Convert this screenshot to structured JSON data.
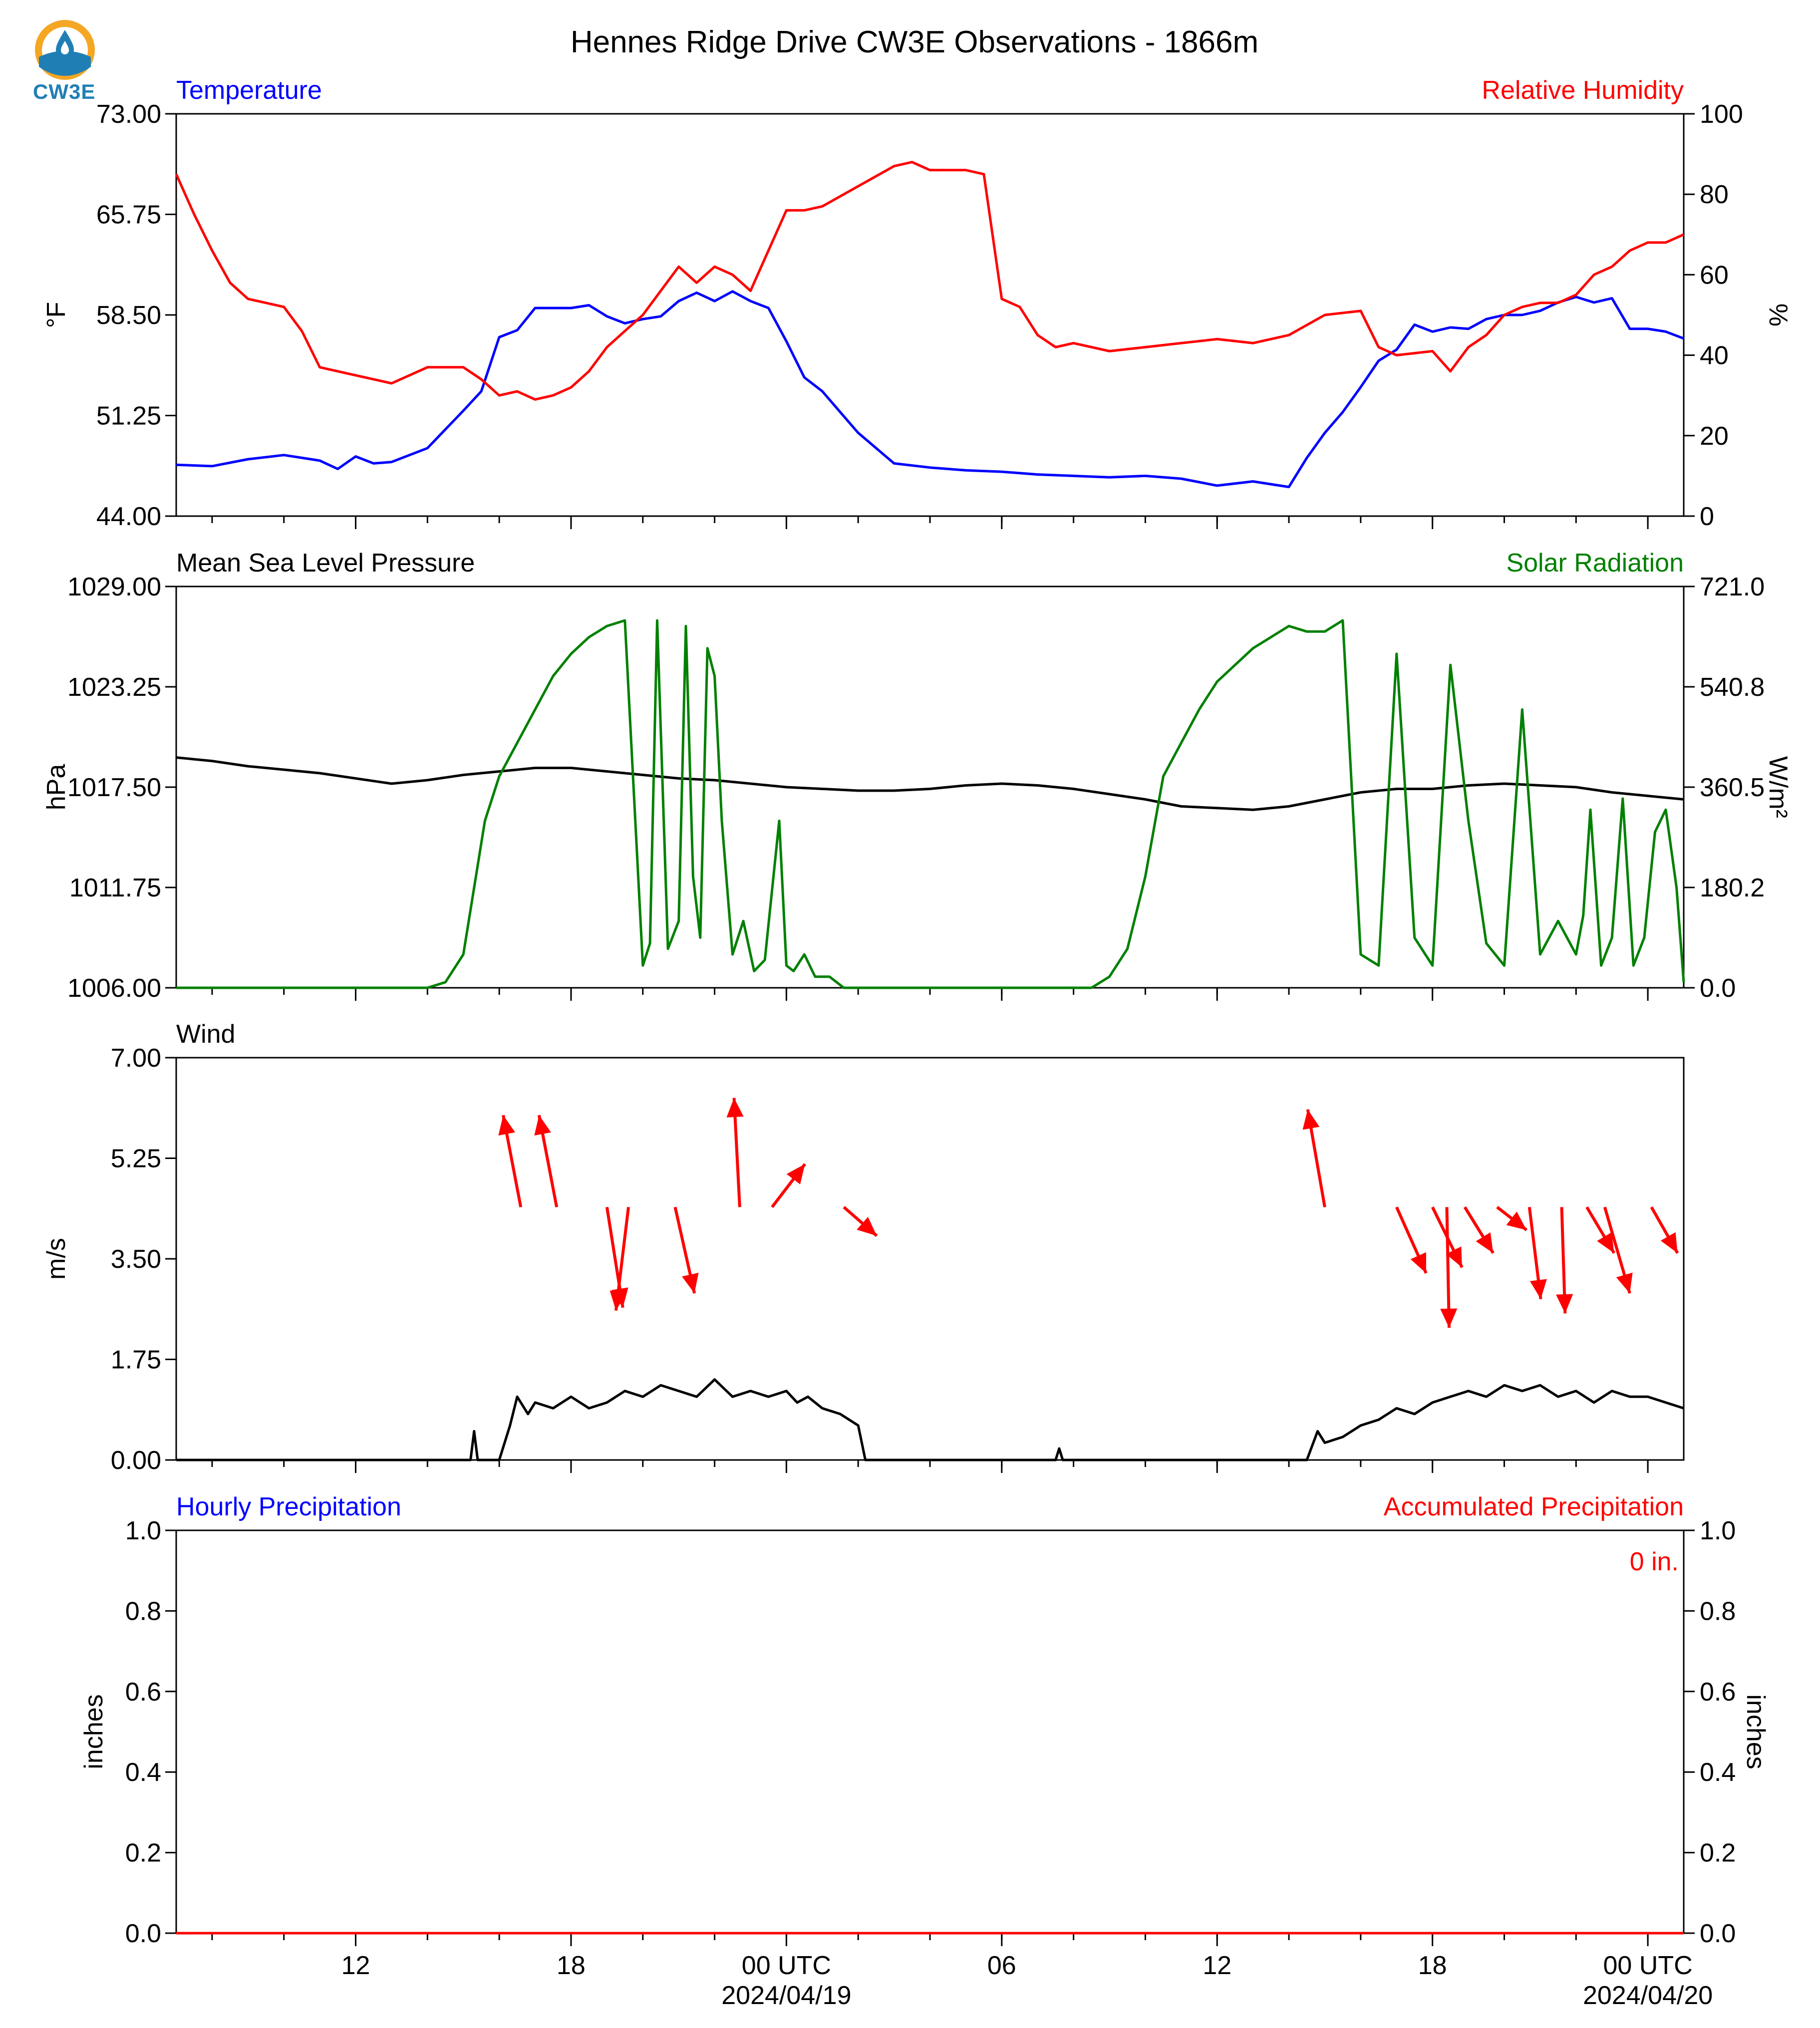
{
  "title": "Hennes Ridge Drive CW3E Observations - 1866m",
  "logo": {
    "text": "CW3E",
    "icon": "cw3e-water-drop-logo"
  },
  "colors": {
    "blue": "#0000ff",
    "red": "#ff0000",
    "green": "#008000",
    "black": "#000000"
  },
  "x_axis": {
    "range_hours": [
      0,
      42
    ],
    "major_ticks": [
      {
        "h": 5,
        "label": "12",
        "sub": ""
      },
      {
        "h": 11,
        "label": "18",
        "sub": ""
      },
      {
        "h": 17,
        "label": "00 UTC",
        "sub": "2024/04/19"
      },
      {
        "h": 23,
        "label": "06",
        "sub": ""
      },
      {
        "h": 29,
        "label": "12",
        "sub": ""
      },
      {
        "h": 35,
        "label": "18",
        "sub": ""
      },
      {
        "h": 41,
        "label": "00 UTC",
        "sub": "2024/04/20"
      }
    ],
    "minor_every_hours": 2,
    "minor_offset": 1
  },
  "chart_data": [
    {
      "type": "line",
      "left_label": "Temperature",
      "right_label": "Relative Humidity",
      "ylabel_left": "°F",
      "ylabel_right": "%",
      "ylim_left": [
        44.0,
        73.0
      ],
      "ylim_right": [
        0,
        100
      ],
      "yticks_left": [
        "73.00",
        "65.75",
        "58.50",
        "51.25",
        "44.00"
      ],
      "yticks_right": [
        "100",
        "80",
        "60",
        "40",
        "20",
        "0"
      ],
      "series": [
        {
          "name": "Temperature",
          "axis": "left",
          "color": "#0000ff",
          "x": [
            0,
            1,
            2,
            3,
            4,
            4.5,
            5,
            5.5,
            6,
            7,
            8,
            8.5,
            9,
            9.5,
            10,
            10.5,
            11,
            11.5,
            12,
            12.5,
            13,
            13.5,
            14,
            14.5,
            15,
            15.5,
            16,
            16.5,
            17,
            17.5,
            18,
            18.5,
            19,
            20,
            21,
            22,
            23,
            24,
            25,
            26,
            27,
            28,
            29,
            30,
            30.5,
            31,
            31.5,
            32,
            32.5,
            33,
            33.5,
            34,
            34.5,
            35,
            35.5,
            36,
            36.5,
            37,
            37.5,
            38,
            38.5,
            39,
            39.5,
            40,
            40.5,
            41,
            41.5,
            42
          ],
          "y": [
            47.7,
            47.6,
            48.1,
            48.4,
            48.0,
            47.4,
            48.3,
            47.8,
            47.9,
            48.9,
            51.6,
            53.0,
            56.9,
            57.4,
            59.0,
            59.0,
            59.0,
            59.2,
            58.4,
            57.9,
            58.2,
            58.4,
            59.5,
            60.1,
            59.5,
            60.2,
            59.5,
            59.0,
            56.6,
            54.0,
            53.0,
            51.5,
            50.0,
            47.8,
            47.5,
            47.3,
            47.2,
            47.0,
            46.9,
            46.8,
            46.9,
            46.7,
            46.2,
            46.5,
            46.3,
            46.1,
            48.2,
            50.0,
            51.5,
            53.3,
            55.2,
            56.0,
            57.8,
            57.3,
            57.6,
            57.5,
            58.2,
            58.5,
            58.5,
            58.8,
            59.4,
            59.8,
            59.4,
            59.7,
            57.5,
            57.5,
            57.3,
            56.8
          ]
        },
        {
          "name": "Relative Humidity",
          "axis": "right",
          "color": "#ff0000",
          "x": [
            0,
            0.5,
            1,
            1.5,
            2,
            2.5,
            3,
            3.5,
            4,
            5,
            6,
            7,
            8,
            8.5,
            9,
            9.5,
            10,
            10.5,
            11,
            11.5,
            12,
            12.5,
            13,
            13.5,
            14,
            14.5,
            15,
            15.5,
            16,
            16.5,
            17,
            17.5,
            18,
            19,
            20,
            20.5,
            21,
            22,
            22.5,
            23,
            23.5,
            24,
            24.5,
            25,
            26,
            27,
            28,
            29,
            30,
            31,
            32,
            33,
            33.5,
            34,
            35,
            35.5,
            36,
            36.5,
            37,
            37.5,
            38,
            38.5,
            39,
            39.5,
            40,
            40.5,
            41,
            41.5,
            42
          ],
          "y": [
            85,
            75,
            66,
            58,
            54,
            53,
            52,
            46,
            37,
            35,
            33,
            37,
            37,
            34,
            30,
            31,
            29,
            30,
            32,
            36,
            42,
            46,
            50,
            56,
            62,
            58,
            62,
            60,
            56,
            66,
            76,
            76,
            77,
            82,
            87,
            88,
            86,
            86,
            85,
            54,
            52,
            45,
            42,
            43,
            41,
            42,
            43,
            44,
            43,
            45,
            50,
            51,
            42,
            40,
            41,
            36,
            42,
            45,
            50,
            52,
            53,
            53,
            55,
            60,
            62,
            66,
            68,
            68,
            70
          ]
        }
      ]
    },
    {
      "type": "line",
      "left_label": "Mean Sea Level Pressure",
      "right_label": "Solar Radiation",
      "ylabel_left": "hPa",
      "ylabel_right": "W/m²",
      "ylim_left": [
        1006.0,
        1029.0
      ],
      "ylim_right": [
        0.0,
        721.0
      ],
      "yticks_left": [
        "1029.00",
        "1023.25",
        "1017.50",
        "1011.75",
        "1006.00"
      ],
      "yticks_right": [
        "721.0",
        "540.8",
        "360.5",
        "180.2",
        "0.0"
      ],
      "series": [
        {
          "name": "Mean Sea Level Pressure",
          "axis": "left",
          "color": "#000000",
          "x": [
            0,
            1,
            2,
            3,
            4,
            5,
            6,
            7,
            8,
            9,
            10,
            11,
            12,
            13,
            14,
            15,
            16,
            17,
            18,
            19,
            20,
            21,
            22,
            23,
            24,
            25,
            26,
            27,
            28,
            29,
            30,
            31,
            32,
            33,
            34,
            35,
            36,
            37,
            38,
            39,
            40,
            41,
            42
          ],
          "y": [
            1019.2,
            1019.0,
            1018.7,
            1018.5,
            1018.3,
            1018.0,
            1017.7,
            1017.9,
            1018.2,
            1018.4,
            1018.6,
            1018.6,
            1018.4,
            1018.2,
            1018.0,
            1017.9,
            1017.7,
            1017.5,
            1017.4,
            1017.3,
            1017.3,
            1017.4,
            1017.6,
            1017.7,
            1017.6,
            1017.4,
            1017.1,
            1016.8,
            1016.4,
            1016.3,
            1016.2,
            1016.4,
            1016.8,
            1017.2,
            1017.4,
            1017.4,
            1017.6,
            1017.7,
            1017.6,
            1017.5,
            1017.2,
            1017.0,
            1016.8
          ]
        },
        {
          "name": "Solar Radiation",
          "axis": "right",
          "color": "#008000",
          "x": [
            0,
            7.0,
            7.5,
            8.0,
            8.3,
            8.6,
            9.0,
            9.5,
            10,
            10.5,
            11,
            11.5,
            12,
            12.5,
            13,
            13.2,
            13.4,
            13.7,
            14.0,
            14.2,
            14.4,
            14.6,
            14.8,
            15.0,
            15.2,
            15.5,
            15.8,
            16.1,
            16.4,
            16.8,
            17.0,
            17.2,
            17.5,
            17.8,
            18.2,
            18.6,
            19.0,
            25.5,
            26.0,
            26.5,
            27.0,
            27.5,
            28.0,
            28.5,
            29.0,
            29.5,
            30.0,
            30.5,
            31.0,
            31.5,
            32.0,
            32.5,
            33.0,
            33.5,
            34.0,
            34.5,
            35.0,
            35.5,
            36.0,
            36.5,
            37.0,
            37.5,
            38.0,
            38.5,
            39.0,
            39.2,
            39.4,
            39.7,
            40.0,
            40.3,
            40.6,
            40.9,
            41.2,
            41.5,
            41.8,
            42
          ],
          "y": [
            0,
            0,
            10,
            60,
            180,
            300,
            380,
            440,
            500,
            560,
            600,
            630,
            650,
            660,
            40,
            80,
            660,
            70,
            120,
            650,
            200,
            90,
            610,
            560,
            300,
            60,
            120,
            30,
            50,
            300,
            40,
            30,
            60,
            20,
            20,
            0,
            0,
            0,
            20,
            70,
            200,
            380,
            440,
            500,
            550,
            580,
            610,
            630,
            650,
            640,
            640,
            660,
            60,
            40,
            600,
            90,
            40,
            580,
            300,
            80,
            40,
            500,
            60,
            120,
            60,
            130,
            320,
            40,
            90,
            340,
            40,
            90,
            280,
            320,
            180,
            10
          ]
        }
      ]
    },
    {
      "type": "line",
      "left_label": "Wind",
      "ylabel_left": "m/s",
      "ylim_left": [
        0.0,
        7.0
      ],
      "yticks_left": [
        "7.00",
        "5.25",
        "3.50",
        "1.75",
        "0.00"
      ],
      "series": [
        {
          "name": "Wind",
          "axis": "left",
          "color": "#000000",
          "x": [
            0,
            8.2,
            8.3,
            8.4,
            9.0,
            9.3,
            9.5,
            9.8,
            10,
            10.5,
            11,
            11.5,
            12,
            12.5,
            13,
            13.5,
            14,
            14.5,
            15,
            15.5,
            16,
            16.5,
            17,
            17.3,
            17.6,
            18,
            18.5,
            19,
            19.2,
            24.5,
            24.6,
            24.7,
            31.5,
            31.8,
            32.0,
            32.5,
            33,
            33.5,
            34,
            34.5,
            35,
            35.5,
            36,
            36.5,
            37,
            37.5,
            38,
            38.5,
            39,
            39.5,
            40,
            40.5,
            41,
            41.5,
            42
          ],
          "y": [
            0,
            0,
            0.5,
            0,
            0,
            0.6,
            1.1,
            0.8,
            1.0,
            0.9,
            1.1,
            0.9,
            1.0,
            1.2,
            1.1,
            1.3,
            1.2,
            1.1,
            1.4,
            1.1,
            1.2,
            1.1,
            1.2,
            1.0,
            1.1,
            0.9,
            0.8,
            0.6,
            0,
            0,
            0.2,
            0,
            0,
            0.5,
            0.3,
            0.4,
            0.6,
            0.7,
            0.9,
            0.8,
            1.0,
            1.1,
            1.2,
            1.1,
            1.3,
            1.2,
            1.3,
            1.1,
            1.2,
            1.0,
            1.2,
            1.1,
            1.1,
            1.0,
            0.9
          ]
        }
      ],
      "wind_arrows": [
        {
          "x": 9.6,
          "y": 4.4,
          "u": -1.55,
          "v": 3.2
        },
        {
          "x": 10.6,
          "y": 4.4,
          "u": -1.55,
          "v": 3.2
        },
        {
          "x": 15.7,
          "y": 4.4,
          "u": -0.5,
          "v": 3.8
        },
        {
          "x": 16.6,
          "y": 4.4,
          "u": 2.9,
          "v": 1.5
        },
        {
          "x": 18.6,
          "y": 4.4,
          "u": 2.9,
          "v": -1.0
        },
        {
          "x": 12.6,
          "y": 4.4,
          "u": -1.1,
          "v": -3.6
        },
        {
          "x": 12.0,
          "y": 4.4,
          "u": 1.4,
          "v": -3.5
        },
        {
          "x": 13.9,
          "y": 4.4,
          "u": 1.7,
          "v": -3.0
        },
        {
          "x": 32.0,
          "y": 4.4,
          "u": -1.5,
          "v": 3.4
        },
        {
          "x": 34.0,
          "y": 4.4,
          "u": 2.6,
          "v": -2.3
        },
        {
          "x": 35.0,
          "y": 4.4,
          "u": 2.6,
          "v": -2.1
        },
        {
          "x": 35.9,
          "y": 4.4,
          "u": 2.5,
          "v": -1.6
        },
        {
          "x": 36.8,
          "y": 4.4,
          "u": 2.6,
          "v": -0.8
        },
        {
          "x": 37.7,
          "y": 4.4,
          "u": 1.0,
          "v": -3.2
        },
        {
          "x": 38.6,
          "y": 4.4,
          "u": 0.3,
          "v": -3.7
        },
        {
          "x": 35.4,
          "y": 4.4,
          "u": 0.2,
          "v": -4.2
        },
        {
          "x": 39.3,
          "y": 4.4,
          "u": 2.4,
          "v": -1.6
        },
        {
          "x": 39.8,
          "y": 4.4,
          "u": 2.2,
          "v": -3.0
        },
        {
          "x": 41.1,
          "y": 4.4,
          "u": 2.3,
          "v": -1.6
        }
      ]
    },
    {
      "type": "line",
      "left_label": "Hourly Precipitation",
      "right_label": "Accumulated Precipitation",
      "ylabel_left": "inches",
      "ylabel_right": "inches",
      "ylim_left": [
        0.0,
        1.0
      ],
      "ylim_right": [
        0.0,
        1.0
      ],
      "yticks_left": [
        "1.0",
        "0.8",
        "0.6",
        "0.4",
        "0.2",
        "0.0"
      ],
      "yticks_right": [
        "1.0",
        "0.8",
        "0.6",
        "0.4",
        "0.2",
        "0.0"
      ],
      "annotation": "0 in.",
      "series": [
        {
          "name": "Hourly Precipitation",
          "axis": "left",
          "color": "#0000ff",
          "x": [
            0,
            42
          ],
          "y": [
            0,
            0
          ]
        },
        {
          "name": "Accumulated Precipitation",
          "axis": "right",
          "color": "#ff0000",
          "x": [
            0,
            42
          ],
          "y": [
            0,
            0
          ]
        }
      ]
    }
  ]
}
